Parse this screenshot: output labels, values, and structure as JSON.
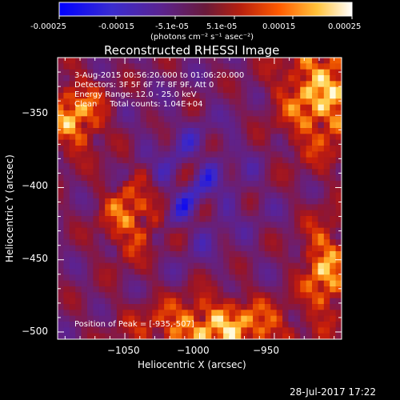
{
  "colorbar": {
    "ticks": [
      "-0.00025",
      "-0.00015",
      "-5.1e-05",
      "5.1e-05",
      "0.00015",
      "0.00025"
    ],
    "units": "(photons cm⁻² s⁻¹ asec⁻²)",
    "colors": [
      "#0000ff",
      "#4b1fa6",
      "#5a1a6a",
      "#8a1a1a",
      "#d9380a",
      "#ff8c00",
      "#ffd24a",
      "#ffffe8"
    ]
  },
  "chart_data": {
    "type": "heatmap",
    "title": "Reconstructed RHESSI Image",
    "xlabel": "Heliocentric X (arcsec)",
    "ylabel": "Heliocentric Y (arcsec)",
    "xlim": [
      -1095,
      -905
    ],
    "ylim": [
      -505,
      -310
    ],
    "xticks": [
      -1050,
      -1000,
      -950
    ],
    "yticks": [
      -350,
      -400,
      -450,
      -500
    ],
    "xtick_labels": [
      "−1050",
      "−1000",
      "−950"
    ],
    "ytick_labels": [
      "−350",
      "−400",
      "−450",
      "−500"
    ],
    "value_range": [
      -0.00025,
      0.00025
    ],
    "info_lines": [
      "3-Aug-2015 00:56:20.000 to 01:06:20.000",
      "Detectors: 3F 5F 6F 7F 8F 9F, Att 0",
      "Energy Range: 12.0 - 25.0 keV",
      "Clean     Total counts: 1.04E+04"
    ],
    "peak_text": "Position of Peak = [-935,-507]",
    "peak_position": [
      -935,
      -507
    ]
  },
  "footer": {
    "timestamp": "28-Jul-2017 17:22"
  }
}
